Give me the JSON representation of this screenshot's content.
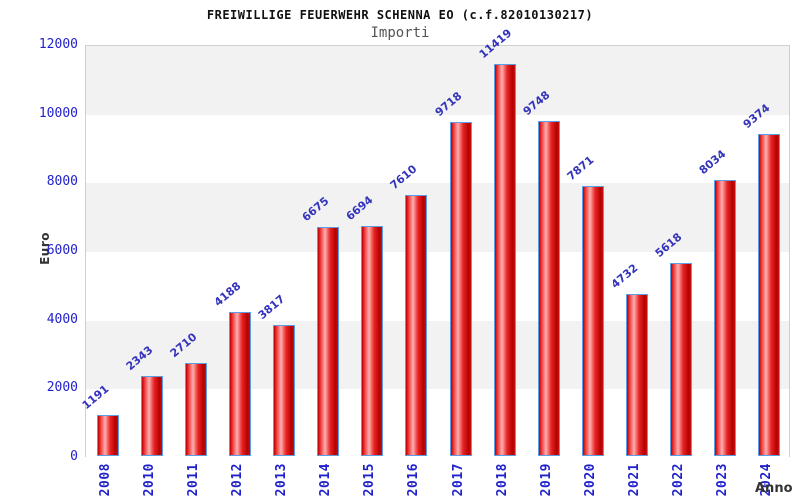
{
  "header": {
    "title": "FREIWILLIGE FEUERWEHR SCHENNA EO (c.f.82010130217)",
    "subtitle": "Importi"
  },
  "axes": {
    "y_label": "Euro",
    "x_label": "Anno"
  },
  "colors": {
    "tick_text": "#2222cc",
    "value_label_text": "#3333bb",
    "bar_border": "#5b9ee6",
    "bar_fill_dark": "#b80000",
    "bar_fill_highlight": "#ffb0b0",
    "band_gray": "#f2f2f2",
    "plot_border": "#cfcfcf",
    "title_text": "#111111",
    "subtitle_text": "#555555",
    "axis_label_text": "#333333"
  },
  "chart_data": {
    "type": "bar",
    "title": "FREIWILLIGE FEUERWEHR SCHENNA EO (c.f.82010130217)",
    "subtitle": "Importi",
    "xlabel": "Anno",
    "ylabel": "Euro",
    "categories": [
      "2008",
      "2010",
      "2011",
      "2012",
      "2013",
      "2014",
      "2015",
      "2016",
      "2017",
      "2018",
      "2019",
      "2020",
      "2021",
      "2022",
      "2023",
      "2024"
    ],
    "values": [
      1191,
      2343,
      2710,
      4188,
      3817,
      6675,
      6694,
      7610,
      9718,
      11419,
      9748,
      7871,
      4732,
      5618,
      8034,
      9374
    ],
    "ylim": [
      0,
      12000
    ],
    "ytick_step": 2000,
    "yticks": [
      0,
      2000,
      4000,
      6000,
      8000,
      10000,
      12000
    ],
    "grid": "alternating horizontal gray/white bands",
    "legend": "none",
    "bar_label_rotation_deg": -40,
    "xtick_rotation_deg": -90
  }
}
